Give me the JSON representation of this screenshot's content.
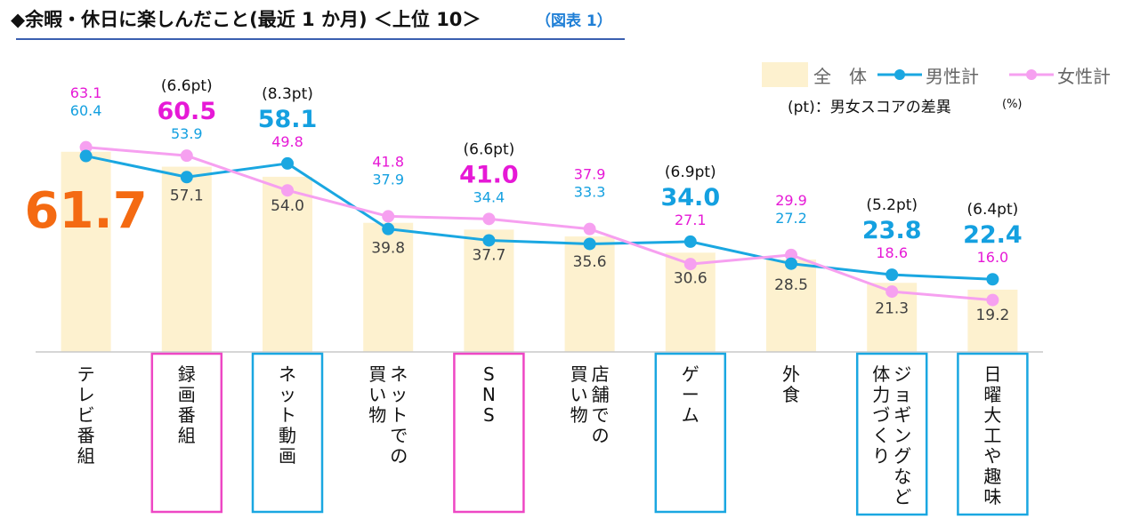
{
  "title": "◆余暇・休日に楽しんだこと(最近 1 か月) ＜上位 10＞",
  "subtitle": "（図表 1）",
  "colors": {
    "total_bar": "#fdf1cf",
    "male": "#1aa7e1",
    "female": "#f6a0f0",
    "female_label": "#e619d6",
    "male_label": "#14a0e0",
    "total_highlight": "#f46a12",
    "box_pink": "#ee47c4",
    "box_blue": "#1aa7e1"
  },
  "legend": {
    "total": "全　体",
    "male": "男性計",
    "female": "女性計",
    "note": "(pt)：男女スコアの差異",
    "unit": "(%)"
  },
  "chart_data": {
    "type": "bar",
    "unit": "%",
    "categories": [
      "テレビ番組",
      "録画番組",
      "ネット動画",
      "ネットでの買い物",
      "SNS",
      "店舗での買い物",
      "ゲーム",
      "外食",
      "ジョギングなど体力づくり",
      "日曜大工や趣味"
    ],
    "category_lines": [
      [
        "テレビ番組"
      ],
      [
        "録画番組"
      ],
      [
        "ネット動画"
      ],
      [
        "ネットでの",
        "買い物"
      ],
      [
        "SNS"
      ],
      [
        "店舗での",
        "買い物"
      ],
      [
        "ゲーム"
      ],
      [
        "外食"
      ],
      [
        "ジョギングなど",
        "体力づくり"
      ],
      [
        "日曜大工や趣味"
      ]
    ],
    "total_labels": [
      "61.7",
      "57.1",
      "54.0",
      "39.8",
      "37.7",
      "35.6",
      "30.6",
      "28.5",
      "21.3",
      "19.2"
    ],
    "male_labels": [
      "60.4",
      "53.9",
      "58.1",
      "37.9",
      "34.4",
      "33.3",
      "34.0",
      "27.2",
      "23.8",
      "22.4"
    ],
    "female_labels": [
      "63.1",
      "60.5",
      "49.8",
      "41.8",
      "41.0",
      "37.9",
      "27.1",
      "29.9",
      "18.6",
      "16.0"
    ],
    "diff_labels": [
      "",
      "(6.6pt)",
      "(8.3pt)",
      "",
      "(6.6pt)",
      "",
      "(6.9pt)",
      "",
      "(5.2pt)",
      "(6.4pt)"
    ],
    "series": [
      {
        "name": "全　体",
        "kind": "bar",
        "values": [
          61.7,
          57.1,
          54.0,
          39.8,
          37.7,
          35.6,
          30.6,
          28.5,
          21.3,
          19.2
        ]
      },
      {
        "name": "男性計",
        "kind": "line",
        "values": [
          60.4,
          53.9,
          58.1,
          37.9,
          34.4,
          33.3,
          34.0,
          27.2,
          23.8,
          22.4
        ]
      },
      {
        "name": "女性計",
        "kind": "line",
        "values": [
          63.1,
          60.5,
          49.8,
          41.8,
          41.0,
          37.9,
          27.1,
          29.9,
          18.6,
          16.0
        ]
      }
    ],
    "highlight_box": [
      "none",
      "female",
      "male",
      "none",
      "female",
      "none",
      "male",
      "none",
      "male",
      "male"
    ],
    "ylim": [
      0,
      80
    ],
    "legend_position": "top-right",
    "grid": false
  }
}
